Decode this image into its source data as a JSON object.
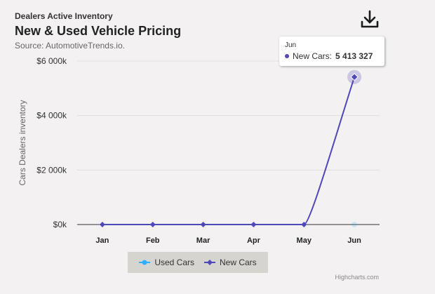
{
  "header": {
    "kicker": "Dealers Active Inventory",
    "title": "New & Used Vehicle Pricing",
    "subtitle": "Source: AutomotiveTrends.io."
  },
  "toolbar": {
    "download_icon": "download-icon"
  },
  "tooltip": {
    "category": "Jun",
    "series_name": "New Cars:",
    "value_text": "5 413 327"
  },
  "credits": "Highcharts.com",
  "colors": {
    "new_cars": "#5048b6",
    "used_cars": "#2caffe",
    "background": "#f3f1f2",
    "legend_bg": "#d6d4cf"
  },
  "chart_data": {
    "type": "line",
    "kicker": "Dealers Active Inventory",
    "title": "New & Used Vehicle Pricing",
    "subtitle": "Source: AutomotiveTrends.io.",
    "categories": [
      "Jan",
      "Feb",
      "Mar",
      "Apr",
      "May",
      "Jun"
    ],
    "ylabel": "Cars Dealers inventory",
    "ylim": [
      0,
      6000000
    ],
    "yticks": [
      0,
      2000000,
      4000000,
      6000000
    ],
    "ytick_labels": [
      "$0k",
      "$2 000k",
      "$4 000k",
      "$6 000k"
    ],
    "grid": true,
    "legend_position": "bottom-center",
    "series": [
      {
        "name": "Used Cars",
        "values": [
          null,
          null,
          null,
          null,
          null,
          0
        ],
        "color": "#2caffe",
        "faded": true
      },
      {
        "name": "New Cars",
        "values": [
          0,
          0,
          0,
          0,
          0,
          5413327
        ],
        "color": "#5048b6",
        "highlighted_index": 5
      }
    ]
  }
}
